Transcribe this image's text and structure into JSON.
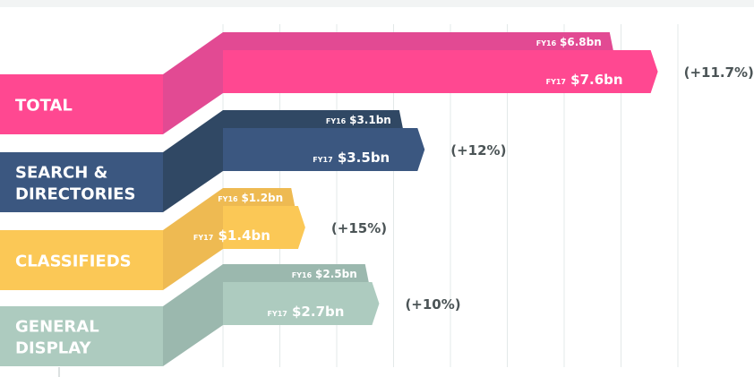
{
  "chart_data": {
    "type": "bar",
    "orientation": "horizontal",
    "title": "",
    "xlabel": "",
    "ylabel": "",
    "unit": "bn",
    "grid": true,
    "xlim": [
      0,
      8
    ],
    "categories": [
      "TOTAL",
      "SEARCH & DIRECTORIES",
      "CLASSIFIEDS",
      "GENERAL DISPLAY"
    ],
    "category_lines": [
      [
        "TOTAL"
      ],
      [
        "SEARCH &",
        "DIRECTORIES"
      ],
      [
        "CLASSIFIEDS"
      ],
      [
        "GENERAL",
        "DISPLAY"
      ]
    ],
    "series": [
      {
        "name": "FY16",
        "values": [
          6.8,
          3.1,
          1.2,
          2.5
        ],
        "labels": [
          "$6.8bn",
          "$3.1bn",
          "$1.2bn",
          "$2.5bn"
        ]
      },
      {
        "name": "FY17",
        "values": [
          7.6,
          3.5,
          1.4,
          2.7
        ],
        "labels": [
          "$7.6bn",
          "$3.5bn",
          "$1.4bn",
          "$2.7bn"
        ]
      }
    ],
    "growth_labels": [
      "(+11.7%)",
      "(+12%)",
      "(+15%)",
      "(+10%)"
    ],
    "colors": {
      "TOTAL": {
        "label": "#ff4891",
        "side": "#e24a93",
        "fy16": "#e24a93",
        "fy17": "#ff4891"
      },
      "SEARCH & DIRECTORIES": {
        "label": "#3b5780",
        "side": "#304864",
        "fy16": "#304864",
        "fy17": "#3b5780"
      },
      "CLASSIFIEDS": {
        "label": "#fbc856",
        "side": "#eeba52",
        "fy16": "#eeba52",
        "fy17": "#fbc856"
      },
      "GENERAL DISPLAY": {
        "label": "#adcbbf",
        "side": "#9bb8ae",
        "fy16": "#9bb8ae",
        "fy17": "#adcbbf"
      }
    },
    "grid_color": "#e3e9e9",
    "growth_color": "#4b5456"
  }
}
